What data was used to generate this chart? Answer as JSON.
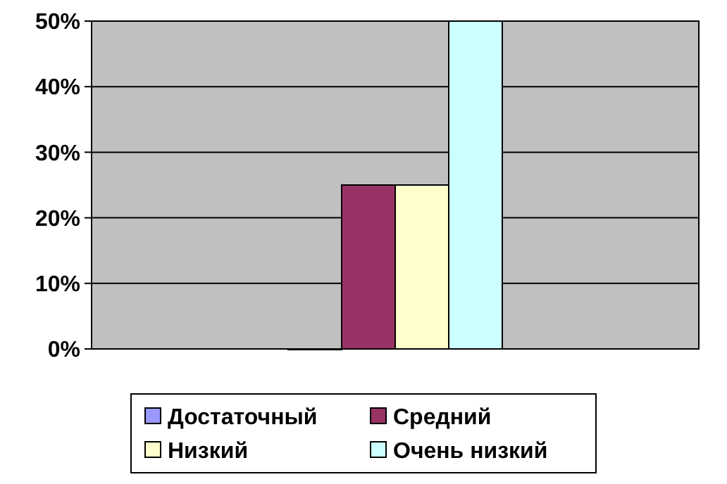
{
  "chart_data": {
    "type": "bar",
    "categories": [
      null
    ],
    "series": [
      {
        "name": "Достаточный",
        "color": "#9999ff",
        "values": [
          0
        ]
      },
      {
        "name": "Средний",
        "color": "#993366",
        "values": [
          25
        ]
      },
      {
        "name": "Низкий",
        "color": "#ffffcc",
        "values": [
          25
        ]
      },
      {
        "name": "Очень низкий",
        "color": "#ccffff",
        "values": [
          50
        ]
      }
    ],
    "ylim": [
      0,
      50
    ],
    "yticks": [
      {
        "value": 0,
        "label": "0%"
      },
      {
        "value": 10,
        "label": "10%"
      },
      {
        "value": 20,
        "label": "20%"
      },
      {
        "value": 30,
        "label": "30%"
      },
      {
        "value": 40,
        "label": "40%"
      },
      {
        "value": 50,
        "label": "50%"
      }
    ],
    "grid": "y",
    "legend": "bottom"
  }
}
